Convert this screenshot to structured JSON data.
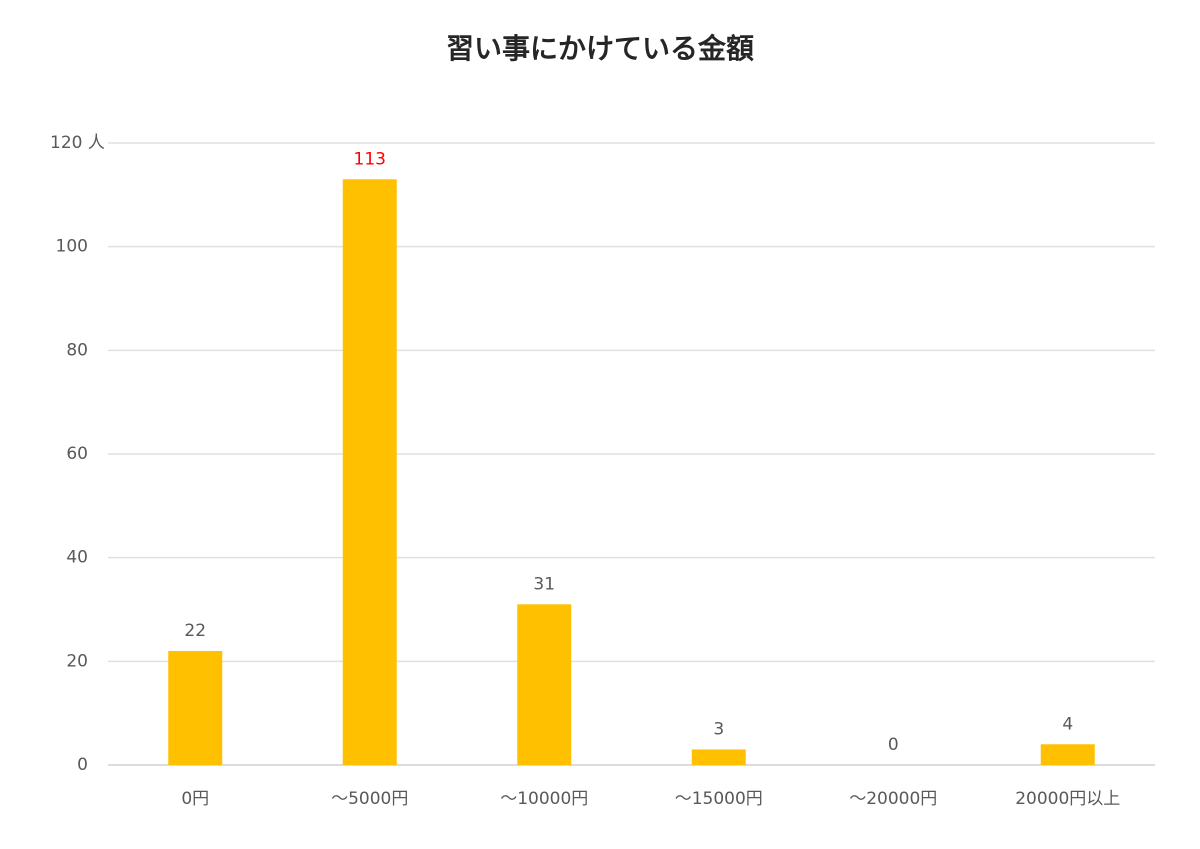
{
  "chart_data": {
    "type": "bar",
    "title": "習い事にかけている金額",
    "categories": [
      "0円",
      "～5000円",
      "～10000円",
      "～15000円",
      "～20000円",
      "20000円以上"
    ],
    "values": [
      22,
      113,
      31,
      3,
      0,
      4
    ],
    "color": "#ffc000",
    "value_label_colors": [
      "#595959",
      "#ff0000",
      "#595959",
      "#595959",
      "#595959",
      "#595959"
    ],
    "ylim": [
      0,
      120
    ],
    "yticks": [
      0,
      20,
      40,
      60,
      80,
      100,
      {
        "value": 120,
        "label": "120 人"
      }
    ],
    "grid": true
  }
}
